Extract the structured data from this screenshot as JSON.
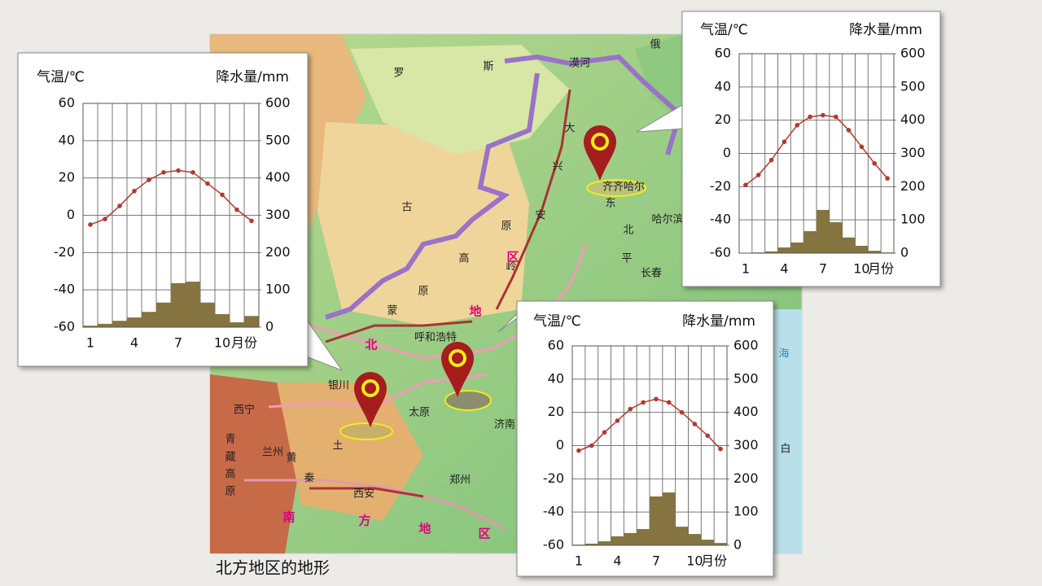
{
  "caption": "北方地区的地形",
  "map": {
    "labels": [
      "俄",
      "罗",
      "斯",
      "漠河",
      "大",
      "兴",
      "安",
      "岭",
      "东",
      "北",
      "平",
      "原",
      "齐齐哈尔",
      "哈尔滨",
      "长春",
      "古",
      "高",
      "原",
      "蒙",
      "呼和浩特",
      "银川",
      "兰州",
      "西宁",
      "太原",
      "济南",
      "郑州",
      "西安",
      "黄",
      "土",
      "秦",
      "青",
      "藏",
      "高",
      "原",
      "北",
      "地",
      "区",
      "南",
      "方",
      "地",
      "区",
      "海",
      "白"
    ]
  },
  "chart_data": [
    {
      "type": "climate",
      "y_label": "气温/℃",
      "y2_label": "降水量/mm",
      "x_label": "月份",
      "categories": [
        "1",
        null,
        null,
        "4",
        null,
        null,
        "7",
        null,
        null,
        "10",
        null,
        null
      ],
      "series": [
        {
          "kind": "bar",
          "axis": "y2",
          "color": "#857440",
          "values": [
            4,
            9,
            17,
            26,
            41,
            66,
            118,
            122,
            66,
            35,
            13,
            30
          ]
        },
        {
          "kind": "line",
          "color": "#b03a2e",
          "values": [
            -5,
            -2,
            5,
            13,
            19,
            23,
            24,
            23,
            17,
            11,
            3,
            -3
          ]
        }
      ],
      "ylim": [
        -60,
        60
      ],
      "yticks": [
        -60,
        -40,
        -20,
        0,
        20,
        40,
        60
      ],
      "y2lim": [
        0,
        600
      ],
      "y2ticks": [
        0,
        100,
        200,
        300,
        400,
        500,
        600
      ],
      "grid": true
    },
    {
      "type": "climate",
      "y_label": "气温/℃",
      "y2_label": "降水量/mm",
      "x_label": "月份",
      "categories": [
        "1",
        null,
        null,
        "4",
        null,
        null,
        "7",
        null,
        null,
        "10",
        null,
        null
      ],
      "series": [
        {
          "kind": "bar",
          "axis": "y2",
          "color": "#857440",
          "values": [
            1,
            2,
            5,
            17,
            32,
            66,
            130,
            93,
            47,
            22,
            7,
            2
          ]
        },
        {
          "kind": "line",
          "color": "#b03a2e",
          "values": [
            -19,
            -13,
            -4,
            7,
            17,
            22,
            23,
            22,
            14,
            4,
            -6,
            -15
          ]
        }
      ],
      "ylim": [
        -60,
        60
      ],
      "yticks": [
        -60,
        -40,
        -20,
        0,
        20,
        40,
        60
      ],
      "y2lim": [
        0,
        600
      ],
      "y2ticks": [
        0,
        100,
        200,
        300,
        400,
        500,
        600
      ],
      "grid": true
    },
    {
      "type": "climate",
      "y_label": "气温/℃",
      "y2_label": "降水量/mm",
      "x_label": "月份",
      "categories": [
        "1",
        null,
        null,
        "4",
        null,
        null,
        "7",
        null,
        null,
        "10",
        null,
        null
      ],
      "series": [
        {
          "kind": "bar",
          "axis": "y2",
          "color": "#857440",
          "values": [
            2,
            5,
            12,
            27,
            37,
            49,
            147,
            159,
            56,
            34,
            17,
            7
          ]
        },
        {
          "kind": "line",
          "color": "#b03a2e",
          "values": [
            -3,
            0,
            8,
            15,
            22,
            26,
            28,
            26,
            20,
            13,
            6,
            -2
          ]
        }
      ],
      "ylim": [
        -60,
        60
      ],
      "yticks": [
        -60,
        -40,
        -20,
        0,
        20,
        40,
        60
      ],
      "y2lim": [
        0,
        600
      ],
      "y2ticks": [
        0,
        100,
        200,
        300,
        400,
        500,
        600
      ],
      "grid": true
    }
  ]
}
